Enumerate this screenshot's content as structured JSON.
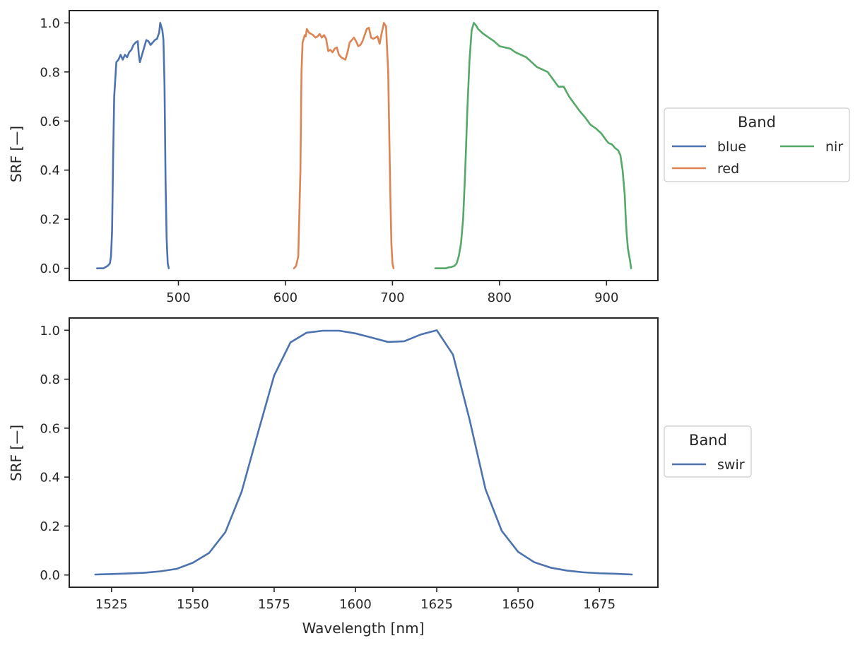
{
  "chart_data": [
    {
      "type": "line",
      "ylabel": "SRF [—]",
      "xlabel": "",
      "xlim": [
        398,
        948
      ],
      "ylim": [
        -0.05,
        1.05
      ],
      "xticks": [
        "500",
        "600",
        "700",
        "800",
        "900"
      ],
      "yticks": [
        "0.0",
        "0.2",
        "0.4",
        "0.6",
        "0.8",
        "1.0"
      ],
      "xtick_values": [
        500,
        600,
        700,
        800,
        900
      ],
      "ytick_values": [
        0.0,
        0.2,
        0.4,
        0.6,
        0.8,
        1.0
      ],
      "grid": false,
      "legend": {
        "title": "Band",
        "placement": "outside-right",
        "columns": 2
      },
      "series": [
        {
          "name": "blue",
          "color": "#4c72b0",
          "points": [
            [
              424,
              0.0
            ],
            [
              428,
              0.0
            ],
            [
              430,
              0.0
            ],
            [
              432,
              0.005
            ],
            [
              434,
              0.01
            ],
            [
              436,
              0.02
            ],
            [
              437,
              0.05
            ],
            [
              438,
              0.15
            ],
            [
              439,
              0.45
            ],
            [
              440,
              0.7
            ],
            [
              442,
              0.84
            ],
            [
              444,
              0.85
            ],
            [
              446,
              0.87
            ],
            [
              448,
              0.85
            ],
            [
              450,
              0.87
            ],
            [
              452,
              0.86
            ],
            [
              454,
              0.88
            ],
            [
              456,
              0.89
            ],
            [
              458,
              0.91
            ],
            [
              460,
              0.92
            ],
            [
              462,
              0.925
            ],
            [
              463,
              0.87
            ],
            [
              464,
              0.84
            ],
            [
              466,
              0.87
            ],
            [
              468,
              0.9
            ],
            [
              470,
              0.93
            ],
            [
              472,
              0.925
            ],
            [
              474,
              0.91
            ],
            [
              476,
              0.92
            ],
            [
              478,
              0.93
            ],
            [
              480,
              0.935
            ],
            [
              482,
              0.96
            ],
            [
              483,
              1.0
            ],
            [
              484,
              0.985
            ],
            [
              485,
              0.97
            ],
            [
              486,
              0.93
            ],
            [
              487,
              0.75
            ],
            [
              488,
              0.35
            ],
            [
              489,
              0.12
            ],
            [
              490,
              0.02
            ],
            [
              491,
              0.0
            ]
          ]
        },
        {
          "name": "red",
          "color": "#dd8452",
          "points": [
            [
              608,
              0.0
            ],
            [
              610,
              0.01
            ],
            [
              612,
              0.05
            ],
            [
              614,
              0.4
            ],
            [
              615,
              0.8
            ],
            [
              616,
              0.92
            ],
            [
              618,
              0.95
            ],
            [
              619,
              0.945
            ],
            [
              620,
              0.975
            ],
            [
              622,
              0.96
            ],
            [
              624,
              0.955
            ],
            [
              626,
              0.95
            ],
            [
              628,
              0.94
            ],
            [
              630,
              0.945
            ],
            [
              632,
              0.955
            ],
            [
              634,
              0.94
            ],
            [
              636,
              0.95
            ],
            [
              638,
              0.935
            ],
            [
              640,
              0.885
            ],
            [
              642,
              0.89
            ],
            [
              644,
              0.88
            ],
            [
              646,
              0.895
            ],
            [
              648,
              0.9
            ],
            [
              650,
              0.87
            ],
            [
              652,
              0.86
            ],
            [
              654,
              0.855
            ],
            [
              656,
              0.85
            ],
            [
              658,
              0.88
            ],
            [
              660,
              0.92
            ],
            [
              662,
              0.93
            ],
            [
              664,
              0.94
            ],
            [
              666,
              0.925
            ],
            [
              668,
              0.905
            ],
            [
              670,
              0.91
            ],
            [
              672,
              0.925
            ],
            [
              674,
              0.95
            ],
            [
              676,
              0.975
            ],
            [
              678,
              0.98
            ],
            [
              680,
              0.94
            ],
            [
              682,
              0.935
            ],
            [
              684,
              0.94
            ],
            [
              686,
              0.945
            ],
            [
              688,
              0.915
            ],
            [
              690,
              0.96
            ],
            [
              692,
              1.0
            ],
            [
              694,
              0.985
            ],
            [
              696,
              0.8
            ],
            [
              698,
              0.3
            ],
            [
              699,
              0.1
            ],
            [
              700,
              0.02
            ],
            [
              701,
              0.0
            ]
          ]
        },
        {
          "name": "nir",
          "color": "#55a868",
          "points": [
            [
              740,
              0.0
            ],
            [
              745,
              0.0
            ],
            [
              750,
              0.0
            ],
            [
              752,
              0.003
            ],
            [
              755,
              0.005
            ],
            [
              758,
              0.01
            ],
            [
              760,
              0.02
            ],
            [
              762,
              0.05
            ],
            [
              764,
              0.1
            ],
            [
              766,
              0.2
            ],
            [
              768,
              0.4
            ],
            [
              770,
              0.65
            ],
            [
              772,
              0.85
            ],
            [
              774,
              0.97
            ],
            [
              776,
              1.0
            ],
            [
              778,
              0.99
            ],
            [
              780,
              0.975
            ],
            [
              785,
              0.955
            ],
            [
              790,
              0.94
            ],
            [
              795,
              0.925
            ],
            [
              800,
              0.905
            ],
            [
              805,
              0.9
            ],
            [
              810,
              0.895
            ],
            [
              815,
              0.88
            ],
            [
              820,
              0.87
            ],
            [
              825,
              0.86
            ],
            [
              830,
              0.84
            ],
            [
              835,
              0.82
            ],
            [
              840,
              0.81
            ],
            [
              845,
              0.8
            ],
            [
              850,
              0.77
            ],
            [
              855,
              0.74
            ],
            [
              860,
              0.74
            ],
            [
              865,
              0.7
            ],
            [
              870,
              0.67
            ],
            [
              875,
              0.64
            ],
            [
              880,
              0.615
            ],
            [
              885,
              0.585
            ],
            [
              890,
              0.57
            ],
            [
              895,
              0.55
            ],
            [
              900,
              0.52
            ],
            [
              902,
              0.51
            ],
            [
              905,
              0.505
            ],
            [
              908,
              0.49
            ],
            [
              911,
              0.48
            ],
            [
              913,
              0.46
            ],
            [
              915,
              0.4
            ],
            [
              917,
              0.3
            ],
            [
              918,
              0.2
            ],
            [
              919,
              0.13
            ],
            [
              920,
              0.08
            ],
            [
              922,
              0.03
            ],
            [
              923,
              0.0
            ]
          ]
        }
      ]
    },
    {
      "type": "line",
      "ylabel": "SRF [—]",
      "xlabel": "Wavelength [nm]",
      "xlim": [
        1512,
        1693
      ],
      "ylim": [
        -0.05,
        1.05
      ],
      "xticks": [
        "1525",
        "1550",
        "1575",
        "1600",
        "1625",
        "1650",
        "1675"
      ],
      "yticks": [
        "0.0",
        "0.2",
        "0.4",
        "0.6",
        "0.8",
        "1.0"
      ],
      "xtick_values": [
        1525,
        1550,
        1575,
        1600,
        1625,
        1650,
        1675
      ],
      "ytick_values": [
        0.0,
        0.2,
        0.4,
        0.6,
        0.8,
        1.0
      ],
      "grid": false,
      "legend": {
        "title": "Band",
        "placement": "outside-right",
        "columns": 1
      },
      "series": [
        {
          "name": "swir",
          "color": "#4c72b0",
          "points": [
            [
              1520,
              0.002
            ],
            [
              1525,
              0.004
            ],
            [
              1530,
              0.006
            ],
            [
              1535,
              0.009
            ],
            [
              1540,
              0.015
            ],
            [
              1545,
              0.025
            ],
            [
              1550,
              0.05
            ],
            [
              1555,
              0.09
            ],
            [
              1560,
              0.175
            ],
            [
              1565,
              0.34
            ],
            [
              1570,
              0.58
            ],
            [
              1575,
              0.815
            ],
            [
              1580,
              0.95
            ],
            [
              1585,
              0.99
            ],
            [
              1590,
              0.998
            ],
            [
              1595,
              0.998
            ],
            [
              1600,
              0.987
            ],
            [
              1605,
              0.97
            ],
            [
              1610,
              0.952
            ],
            [
              1615,
              0.955
            ],
            [
              1620,
              0.982
            ],
            [
              1625,
              1.0
            ],
            [
              1630,
              0.9
            ],
            [
              1635,
              0.64
            ],
            [
              1640,
              0.35
            ],
            [
              1645,
              0.18
            ],
            [
              1650,
              0.095
            ],
            [
              1655,
              0.052
            ],
            [
              1660,
              0.03
            ],
            [
              1665,
              0.018
            ],
            [
              1670,
              0.011
            ],
            [
              1675,
              0.007
            ],
            [
              1680,
              0.005
            ],
            [
              1685,
              0.002
            ]
          ]
        }
      ]
    }
  ]
}
